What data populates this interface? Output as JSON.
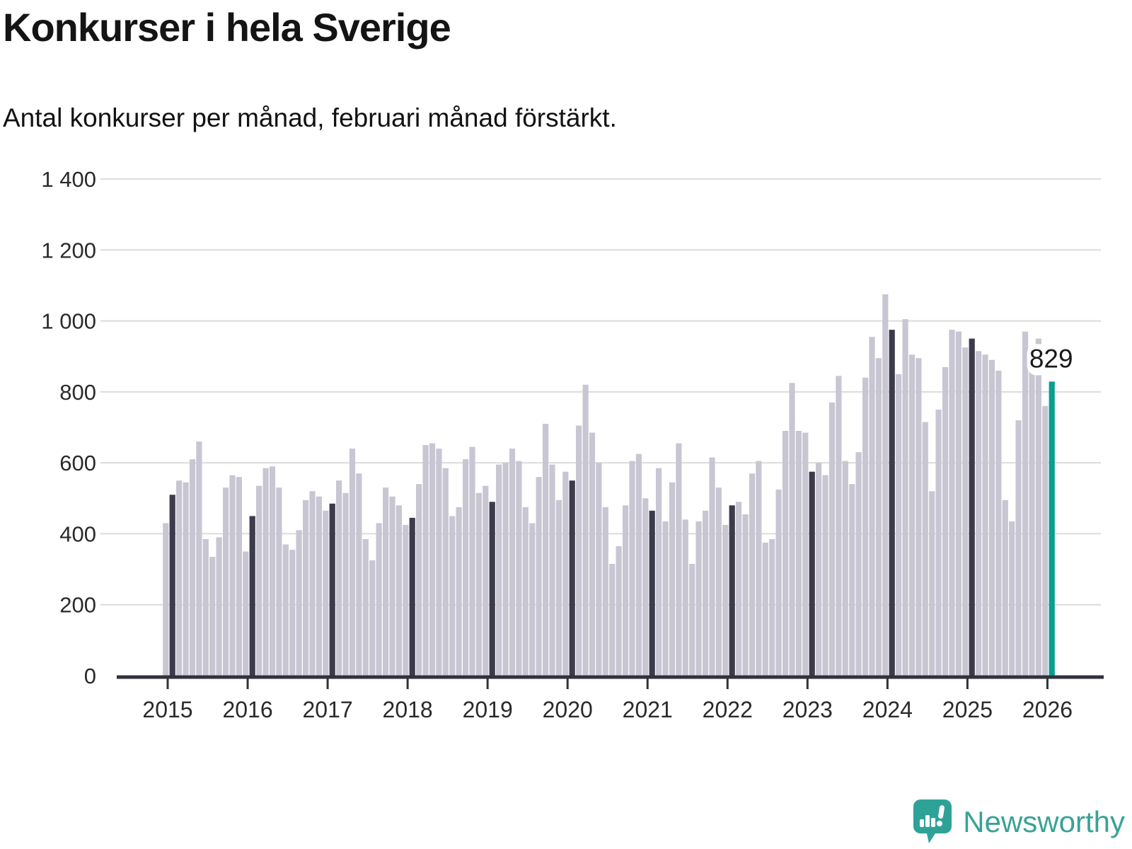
{
  "header": {
    "title": "Konkurser i hela Sverige",
    "subtitle": "Antal konkurser per månad, februari månad förstärkt."
  },
  "footer": {
    "logo_text": "Newsworthy",
    "logo_icon": "bar-chart-speech-bubble-icon"
  },
  "chart_data": {
    "type": "bar",
    "title": "Konkurser i hela Sverige",
    "subtitle": "Antal konkurser per månad, februari månad förstärkt.",
    "xlabel": "",
    "ylabel": "",
    "x_unit": "month",
    "start_month": "2015-01",
    "end_month": "2026-02",
    "highlight_rule": "february_bars_dark",
    "grid": true,
    "ylim": [
      0,
      1400
    ],
    "y_axis": {
      "ticks": [
        {
          "value": 0,
          "label": "0"
        },
        {
          "value": 200,
          "label": "200"
        },
        {
          "value": 400,
          "label": "400"
        },
        {
          "value": 600,
          "label": "600"
        },
        {
          "value": 800,
          "label": "800"
        },
        {
          "value": 1000,
          "label": "1 000"
        },
        {
          "value": 1200,
          "label": "1 200"
        },
        {
          "value": 1400,
          "label": "1 400"
        }
      ]
    },
    "x_tick_years": [
      2015,
      2016,
      2017,
      2018,
      2019,
      2020,
      2021,
      2022,
      2023,
      2024,
      2025,
      2026
    ],
    "series": [
      {
        "year": 2015,
        "values": [
          430,
          510,
          550,
          545,
          610,
          660,
          385,
          335,
          390,
          530,
          565,
          560
        ]
      },
      {
        "year": 2016,
        "values": [
          350,
          450,
          535,
          585,
          590,
          530,
          370,
          355,
          410,
          495,
          520,
          505
        ]
      },
      {
        "year": 2017,
        "values": [
          465,
          485,
          550,
          515,
          640,
          570,
          385,
          325,
          430,
          530,
          505,
          480
        ]
      },
      {
        "year": 2018,
        "values": [
          425,
          445,
          540,
          650,
          655,
          640,
          585,
          450,
          475,
          610,
          645,
          515
        ]
      },
      {
        "year": 2019,
        "values": [
          535,
          490,
          595,
          600,
          640,
          605,
          475,
          430,
          560,
          710,
          595,
          495
        ]
      },
      {
        "year": 2020,
        "values": [
          575,
          550,
          705,
          820,
          685,
          600,
          475,
          315,
          365,
          480,
          605,
          625
        ]
      },
      {
        "year": 2021,
        "values": [
          500,
          465,
          585,
          435,
          545,
          655,
          440,
          315,
          435,
          465,
          615,
          530
        ]
      },
      {
        "year": 2022,
        "values": [
          425,
          480,
          490,
          455,
          570,
          605,
          375,
          385,
          525,
          690,
          825,
          690
        ]
      },
      {
        "year": 2023,
        "values": [
          685,
          575,
          600,
          565,
          770,
          845,
          605,
          540,
          630,
          840,
          955,
          895
        ]
      },
      {
        "year": 2024,
        "values": [
          1075,
          975,
          850,
          1005,
          905,
          895,
          715,
          520,
          750,
          870,
          975,
          970
        ]
      },
      {
        "year": 2025,
        "values": [
          925,
          950,
          915,
          905,
          890,
          860,
          495,
          435,
          720,
          970,
          860,
          950
        ]
      },
      {
        "year": 2026,
        "values": [
          760,
          829
        ]
      }
    ],
    "annotation": {
      "text": "829",
      "month": "2026-02",
      "value": 829
    },
    "legend": null,
    "colors": {
      "default_bar": "#c9c6d3",
      "february_bar": "#3c3b4b",
      "current_bar": "#0a9e8e",
      "grid_line": "#dcdcdc",
      "axis_line": "#32323c",
      "tick_label": "#2a2a2a",
      "annotation_text": "#1a1a1a",
      "annotation_bubble": "#ffffff",
      "logo_teal": "#3aa296"
    }
  }
}
